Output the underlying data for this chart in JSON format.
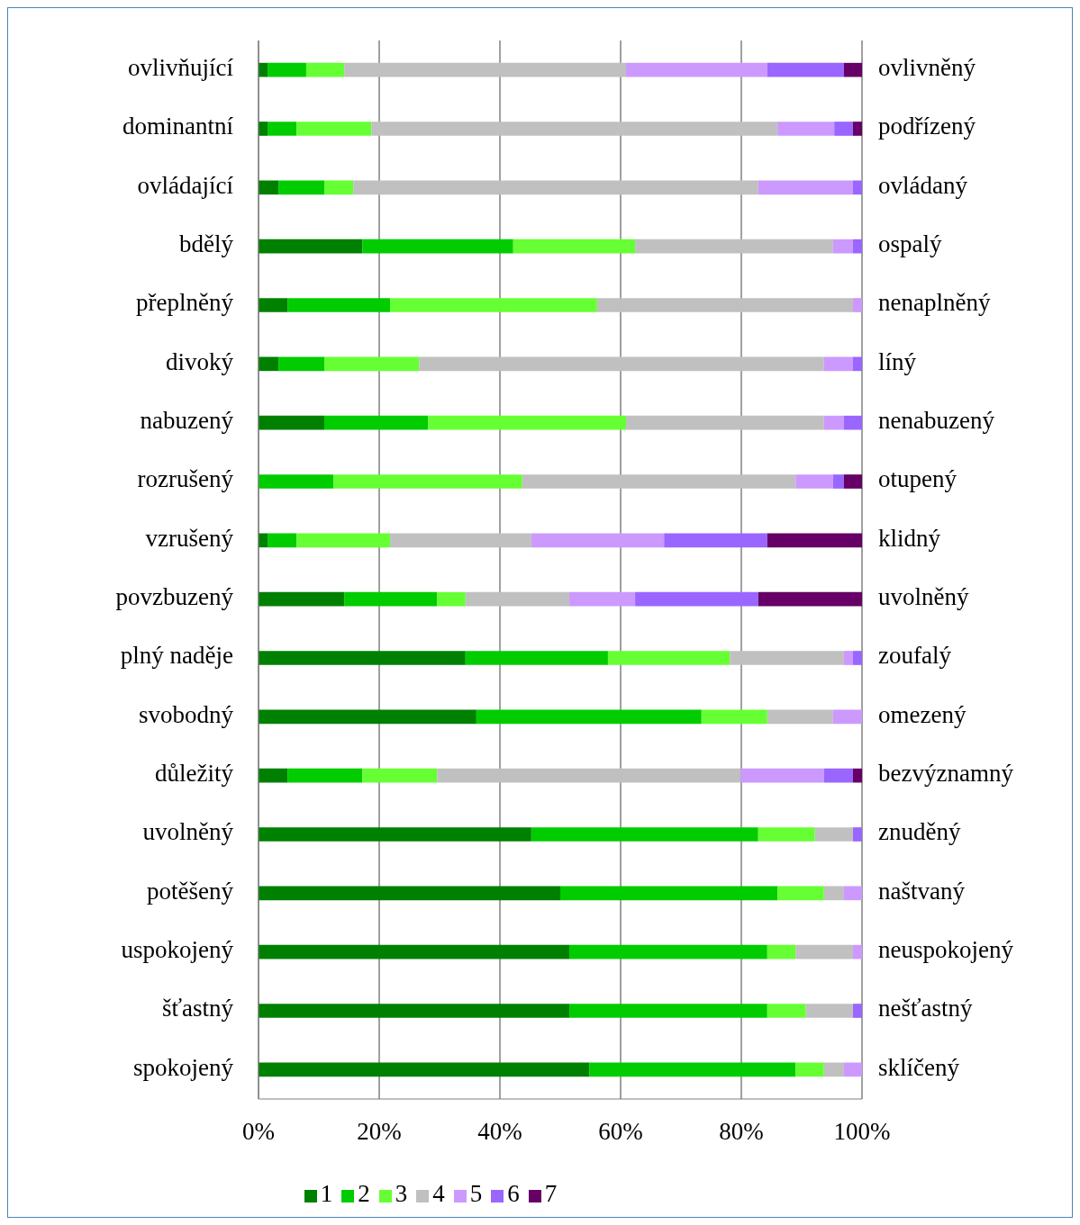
{
  "chart_data": {
    "type": "bar",
    "orientation": "horizontal",
    "stacked": true,
    "categories": [
      "ovlivňující",
      "dominantní",
      "ovládající",
      "bdělý",
      "přeplněný",
      "divoký",
      "nabuzený",
      "rozrušený",
      "vzrušený",
      "povzbuzený",
      "plný naděje",
      "svobodný",
      "důležitý",
      "uvolněný",
      "potěšený",
      "uspokojený",
      "šťastný",
      "spokojený"
    ],
    "y2_categories": [
      "ovlivněný",
      "podřízený",
      "ovládaný",
      "ospalý",
      "nenaplněný",
      "líný",
      "nenabuzený",
      "otupený",
      "klidný",
      "uvolněný",
      "zoufalý",
      "omezený",
      "bezvýznamný",
      "znuděný",
      "naštvaný",
      "neuspokojený",
      "nešťastný",
      "sklíčený"
    ],
    "series": [
      {
        "name": "1",
        "color": "#008000",
        "values": [
          1.5,
          1.5,
          3.3,
          17.2,
          4.8,
          3.3,
          10.9,
          0,
          1.5,
          14.2,
          34.3,
          36.1,
          4.8,
          45.2,
          50.0,
          51.5,
          51.5,
          54.8
        ]
      },
      {
        "name": "2",
        "color": "#00cc00",
        "values": [
          6.4,
          4.8,
          7.6,
          25.0,
          17.0,
          7.6,
          17.2,
          12.4,
          4.8,
          15.4,
          23.6,
          37.3,
          12.4,
          37.6,
          36.0,
          32.8,
          32.8,
          34.2
        ]
      },
      {
        "name": "3",
        "color": "#66ff33",
        "values": [
          6.3,
          12.4,
          4.8,
          20.2,
          34.3,
          15.7,
          32.8,
          31.3,
          15.5,
          4.7,
          20.2,
          10.9,
          12.4,
          9.4,
          7.7,
          4.7,
          6.4,
          4.7
        ]
      },
      {
        "name": "4",
        "color": "#c0c0c0",
        "values": [
          46.7,
          67.3,
          67.1,
          32.8,
          42.4,
          67.1,
          32.8,
          45.3,
          23.4,
          17.2,
          18.9,
          10.9,
          50.3,
          6.3,
          3.3,
          9.5,
          7.8,
          3.3
        ]
      },
      {
        "name": "5",
        "color": "#cc99ff",
        "values": [
          23.4,
          9.4,
          15.7,
          3.3,
          1.5,
          4.8,
          3.3,
          6.2,
          22.0,
          10.9,
          1.5,
          4.8,
          13.8,
          0,
          3.0,
          1.5,
          0,
          3.0
        ]
      },
      {
        "name": "6",
        "color": "#9966ff",
        "values": [
          12.7,
          3.1,
          1.5,
          1.5,
          0,
          1.5,
          3.0,
          1.8,
          17.1,
          20.4,
          1.5,
          0,
          4.8,
          1.5,
          0,
          0,
          1.5,
          0
        ]
      },
      {
        "name": "7",
        "color": "#660066",
        "values": [
          3.0,
          1.5,
          0,
          0,
          0,
          0,
          0,
          3.0,
          15.7,
          17.2,
          0,
          0,
          1.5,
          0,
          0,
          0,
          0,
          0
        ]
      }
    ],
    "xlim": [
      0,
      100
    ],
    "xticks": [
      {
        "value": 0,
        "label": "0%"
      },
      {
        "value": 20,
        "label": "20%"
      },
      {
        "value": 40,
        "label": "40%"
      },
      {
        "value": 60,
        "label": "60%"
      },
      {
        "value": 80,
        "label": "80%"
      },
      {
        "value": 100,
        "label": "100%"
      }
    ],
    "grid": "x",
    "legend": "bottom"
  }
}
